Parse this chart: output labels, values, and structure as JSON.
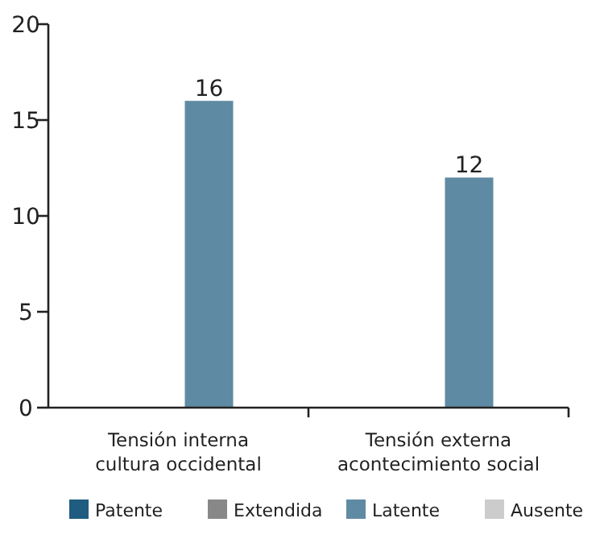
{
  "chart_data": {
    "type": "bar",
    "categories": [
      "Tensión interna\ncultura occidental",
      "Tensión externa\nacontecimiento social"
    ],
    "series": [
      {
        "name": "Patente",
        "color": "#1f5c80",
        "values": [
          null,
          null
        ]
      },
      {
        "name": "Extendida",
        "color": "#888888",
        "values": [
          null,
          null
        ]
      },
      {
        "name": "Latente",
        "color": "#5f8aa3",
        "values": [
          16,
          12
        ],
        "value_labels": [
          "16",
          "12"
        ]
      },
      {
        "name": "Ausente",
        "color": "#cccccc",
        "values": [
          null,
          null
        ]
      }
    ],
    "ylim": [
      0,
      20
    ],
    "yticks": [
      0,
      5,
      10,
      15,
      20
    ],
    "grid": false,
    "legend": "bottom"
  }
}
